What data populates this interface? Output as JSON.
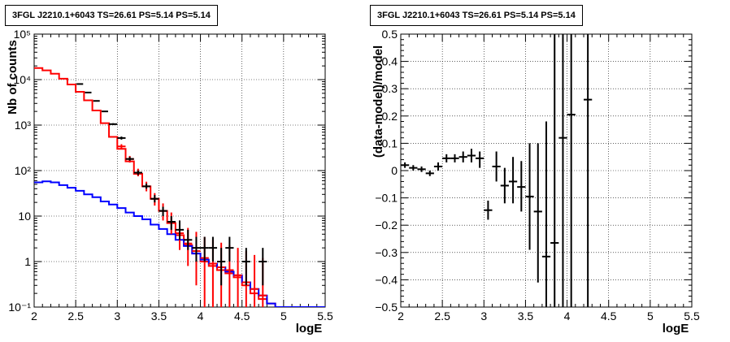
{
  "chart_data": [
    {
      "type": "scatter",
      "title": "3FGL J2210.1+6043 TS=26.61 PS=5.14 PS=5.14",
      "xlabel": "logE",
      "ylabel": "Nb of counts",
      "xlim": [
        2,
        5.5
      ],
      "ylim": [
        0.1,
        100000
      ],
      "yscale": "log",
      "grid": true,
      "x_ticks": [
        "2",
        "2.5",
        "3",
        "3.5",
        "4",
        "4.5",
        "5",
        "5.5"
      ],
      "y_ticks": [
        "10⁻¹",
        "1",
        "10",
        "10²",
        "10³",
        "10⁴",
        "10⁵"
      ],
      "series": [
        {
          "color": "#ff0000",
          "kind": "step",
          "x": [
            2.05,
            2.15,
            2.25,
            2.35,
            2.45,
            2.55,
            2.65,
            2.75,
            2.85,
            2.95,
            3.05,
            3.15,
            3.25,
            3.35,
            3.45,
            3.55,
            3.65,
            3.75,
            3.85,
            3.95,
            4.05,
            4.15,
            4.25,
            4.35,
            4.45,
            4.55,
            4.65,
            4.75,
            4.85,
            4.95,
            5.05,
            5.15,
            5.25,
            5.35,
            5.45
          ],
          "y": [
            18000,
            16000,
            13500,
            10500,
            7800,
            5400,
            3500,
            2100,
            1100,
            550,
            300,
            160,
            85,
            45,
            24,
            13,
            7,
            3.8,
            2.3,
            1.5,
            1.0,
            0.8,
            0.65,
            0.55,
            0.45,
            0.3,
            0.2,
            0.15,
            0.12,
            0.1,
            0.1,
            0.1,
            0.1,
            0.1,
            0.1
          ]
        },
        {
          "color": "#0000ff",
          "kind": "step",
          "x": [
            2.05,
            2.15,
            2.25,
            2.35,
            2.45,
            2.55,
            2.65,
            2.75,
            2.85,
            2.95,
            3.05,
            3.15,
            3.25,
            3.35,
            3.45,
            3.55,
            3.65,
            3.75,
            3.85,
            3.95,
            4.05,
            4.15,
            4.25,
            4.35,
            4.45,
            4.55,
            4.65,
            4.75,
            4.85,
            4.95,
            5.05,
            5.15,
            5.25,
            5.35,
            5.45
          ],
          "y": [
            55,
            58,
            55,
            48,
            42,
            36,
            30,
            26,
            21,
            18,
            15,
            12,
            10,
            8.5,
            6.5,
            5.2,
            4,
            3,
            2.2,
            1.5,
            1.1,
            0.9,
            0.75,
            0.6,
            0.5,
            0.35,
            0.25,
            0.18,
            0.12,
            0.1,
            0.1,
            0.1,
            0.1,
            0.1,
            0.1
          ]
        },
        {
          "color": "#ff0000",
          "kind": "points",
          "x": [
            3.05,
            3.15,
            3.25,
            3.35,
            3.45,
            3.55,
            3.65,
            3.75,
            3.85,
            3.95,
            4.05,
            4.15,
            4.25,
            4.35,
            4.45,
            4.55,
            4.65,
            4.75
          ],
          "y": [
            340,
            180,
            90,
            45,
            24,
            13,
            7.5,
            4.2,
            2.5,
            1.7,
            1.2,
            0.9,
            0.75,
            0.65,
            0.5,
            0.35,
            0.25,
            0.18
          ],
          "y_lo": [
            300,
            150,
            75,
            35,
            17,
            8,
            4,
            1.8,
            0.8,
            0.3,
            0.1,
            0.1,
            0.1,
            0.1,
            0.1,
            0.1,
            0.1,
            0.1
          ],
          "y_hi": [
            380,
            210,
            110,
            57,
            32,
            19,
            12,
            8,
            5.5,
            4.5,
            3.5,
            3,
            2.6,
            2.3,
            2,
            1.7,
            1.4,
            1.2
          ]
        },
        {
          "color": "#000000",
          "kind": "points",
          "x": [
            2.95,
            3.05,
            3.15,
            3.25,
            3.35,
            3.45,
            3.55,
            3.65,
            3.75,
            3.85,
            3.95,
            4.05,
            4.15,
            4.25,
            4.35,
            4.55,
            4.75
          ],
          "y": [
            1050,
            520,
            180,
            90,
            45,
            24,
            13,
            7.5,
            5,
            3,
            2,
            2,
            2,
            1,
            2,
            1,
            1
          ],
          "y_lo": [
            1000,
            480,
            165,
            80,
            40,
            20,
            10,
            5,
            3,
            1.8,
            1,
            1,
            1,
            0.3,
            1,
            0.3,
            0.3
          ],
          "y_hi": [
            1100,
            560,
            200,
            100,
            52,
            29,
            16,
            10,
            8,
            5,
            3.5,
            3.5,
            3.5,
            2,
            3.5,
            2,
            2
          ]
        },
        {
          "color": "#000000",
          "kind": "markers",
          "x": [
            2.55,
            2.65,
            2.75,
            2.85
          ],
          "y": [
            8000,
            5200,
            3400,
            2000
          ]
        }
      ]
    },
    {
      "type": "scatter",
      "title": "3FGL J2210.1+6043 TS=26.61 PS=5.14 PS=5.14",
      "xlabel": "logE",
      "ylabel": "(data-model)/model",
      "xlim": [
        2,
        5.5
      ],
      "ylim": [
        -0.5,
        0.5
      ],
      "grid": true,
      "x_ticks": [
        "2",
        "2.5",
        "3",
        "3.5",
        "4",
        "4.5",
        "5",
        "5.5"
      ],
      "y_ticks": [
        "−0.5",
        "−0.4",
        "−0.3",
        "−0.2",
        "−0.1",
        "0",
        "0.1",
        "0.2",
        "0.3",
        "0.4",
        "0.5"
      ],
      "series": [
        {
          "color": "#000000",
          "kind": "points",
          "x": [
            2.05,
            2.15,
            2.25,
            2.35,
            2.45,
            2.55,
            2.65,
            2.75,
            2.85,
            2.95,
            3.05,
            3.15,
            3.25,
            3.35,
            3.45,
            3.55,
            3.65,
            3.75,
            3.85,
            3.95,
            4.05,
            4.25
          ],
          "y": [
            0.02,
            0.01,
            0.005,
            -0.01,
            0.015,
            0.045,
            0.045,
            0.05,
            0.055,
            0.045,
            -0.145,
            0.015,
            -0.055,
            -0.04,
            -0.06,
            -0.095,
            -0.15,
            -0.315,
            -0.265,
            0.12,
            0.205,
            0.26
          ],
          "y_lo": [
            0.01,
            0.0,
            -0.005,
            -0.02,
            0.0,
            0.03,
            0.03,
            0.03,
            0.03,
            0.01,
            -0.18,
            -0.04,
            -0.12,
            -0.12,
            -0.15,
            -0.29,
            -0.41,
            -0.5,
            -0.5,
            -0.5,
            -0.5,
            -0.5
          ],
          "y_hi": [
            0.03,
            0.02,
            0.015,
            0.0,
            0.03,
            0.06,
            0.06,
            0.07,
            0.08,
            0.07,
            -0.11,
            0.07,
            0.01,
            0.05,
            0.035,
            0.1,
            0.1,
            0.18,
            0.5,
            0.5,
            0.5,
            0.5
          ]
        }
      ]
    }
  ]
}
